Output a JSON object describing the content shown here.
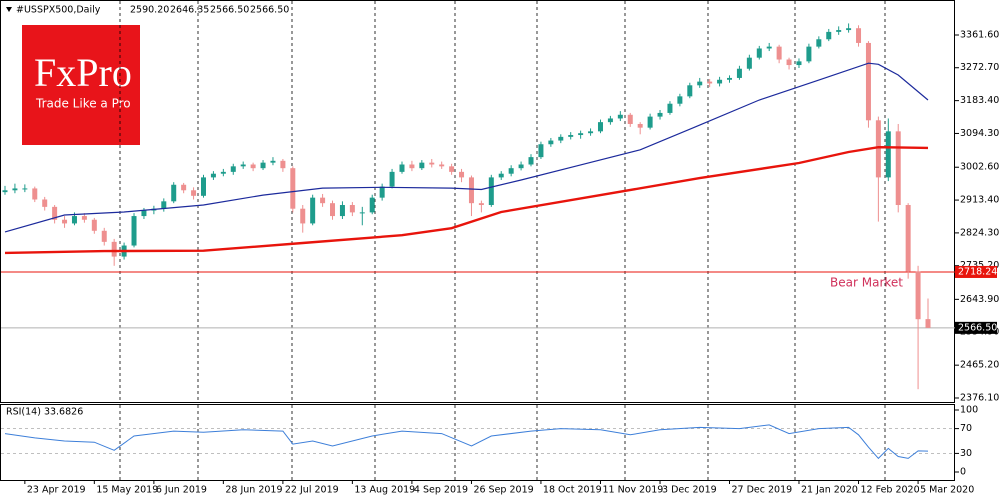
{
  "chart_data": {
    "type": "candlestick",
    "header": {
      "symbol": "#USSPX500,Daily",
      "ohlc": [
        {
          "value": 2590.2,
          "label": "2590.20"
        },
        {
          "value": 2646.35,
          "label": "2646.35"
        },
        {
          "value": 2566.5,
          "label": "2566.50"
        },
        {
          "value": 2566.5,
          "label": "2566.50"
        }
      ]
    },
    "logo": {
      "brand": "FxPro",
      "tagline": "Trade Like a Pro"
    },
    "categories": [
      null,
      null,
      "23 Apr 2019",
      null,
      null,
      null,
      null,
      null,
      null,
      "15 May 2019",
      null,
      null,
      null,
      null,
      null,
      "6 Jun 2019",
      null,
      null,
      null,
      null,
      null,
      null,
      "28 Jun 2019",
      null,
      null,
      null,
      null,
      null,
      "22 Jul 2019",
      null,
      null,
      null,
      null,
      null,
      null,
      "13 Aug 2019",
      null,
      null,
      null,
      null,
      null,
      "4 Sep 2019",
      null,
      null,
      null,
      null,
      null,
      "26 Sep 2019",
      null,
      null,
      null,
      null,
      null,
      null,
      "18 Oct 2019",
      null,
      null,
      null,
      null,
      null,
      "11 Nov 2019",
      null,
      null,
      null,
      null,
      null,
      "3 Dec 2019",
      null,
      null,
      null,
      null,
      null,
      null,
      "27 Dec 2019",
      null,
      null,
      null,
      null,
      null,
      null,
      "21 Jan 2020",
      null,
      null,
      null,
      null,
      null,
      "12 Feb 2020",
      null,
      null,
      null,
      null,
      null,
      "5 Mar 2020",
      null
    ],
    "open": [
      2935,
      2940,
      2945,
      2945,
      2915,
      2895,
      2860,
      2850,
      2870,
      2860,
      2830,
      2800,
      2760,
      2790,
      2870,
      2885,
      2890,
      2910,
      2955,
      2940,
      2925,
      2975,
      2985,
      2990,
      3005,
      3010,
      3000,
      3015,
      3020,
      3000,
      2890,
      2850,
      2920,
      2905,
      2870,
      2900,
      2880,
      2880,
      2920,
      2950,
      2990,
      3010,
      3000,
      3015,
      3010,
      3005,
      2990,
      2975,
      2905,
      2900,
      2975,
      2985,
      3000,
      3010,
      3030,
      3065,
      3075,
      3085,
      3090,
      3095,
      3100,
      3125,
      3135,
      3145,
      3120,
      3110,
      3140,
      3150,
      3175,
      3195,
      3225,
      3235,
      3230,
      3240,
      3245,
      3270,
      3300,
      3325,
      3330,
      3295,
      3280,
      3290,
      3330,
      3350,
      3370,
      3375,
      3380,
      3340,
      3130,
      2975,
      3100,
      2900,
      2720,
      2590.2
    ],
    "high": [
      2952,
      2958,
      2956,
      2950,
      2922,
      2900,
      2870,
      2880,
      2878,
      2865,
      2838,
      2808,
      2798,
      2878,
      2892,
      2898,
      2918,
      2962,
      2960,
      2948,
      2982,
      2992,
      2998,
      3012,
      3018,
      3015,
      3022,
      3030,
      3025,
      3005,
      2900,
      2928,
      2930,
      2912,
      2910,
      2908,
      2895,
      2928,
      2958,
      2998,
      3018,
      3020,
      3022,
      3025,
      3018,
      3012,
      2998,
      2980,
      2912,
      2982,
      2992,
      3008,
      3018,
      3038,
      3072,
      3082,
      3092,
      3098,
      3102,
      3108,
      3132,
      3142,
      3155,
      3150,
      3125,
      3148,
      3158,
      3182,
      3202,
      3232,
      3245,
      3242,
      3248,
      3252,
      3278,
      3308,
      3332,
      3340,
      3335,
      3300,
      3298,
      3338,
      3358,
      3378,
      3385,
      3393,
      3388,
      3345,
      3140,
      3135,
      3120,
      2905,
      2735,
      2646.35
    ],
    "low": [
      2928,
      2932,
      2935,
      2908,
      2885,
      2850,
      2838,
      2845,
      2852,
      2822,
      2790,
      2735,
      2752,
      2785,
      2862,
      2875,
      2882,
      2905,
      2932,
      2915,
      2920,
      2968,
      2978,
      2982,
      2998,
      2992,
      2995,
      3008,
      2990,
      2880,
      2825,
      2845,
      2895,
      2860,
      2862,
      2870,
      2845,
      2875,
      2912,
      2945,
      2985,
      2992,
      2995,
      3002,
      2998,
      2982,
      2962,
      2870,
      2880,
      2895,
      2968,
      2978,
      2994,
      3005,
      3025,
      3058,
      3068,
      3078,
      3080,
      3088,
      3095,
      3118,
      3128,
      3112,
      3092,
      3105,
      3132,
      3145,
      3168,
      3190,
      3218,
      3220,
      3222,
      3232,
      3240,
      3265,
      3295,
      3318,
      3285,
      3268,
      3272,
      3285,
      3325,
      3345,
      3362,
      3368,
      3330,
      3110,
      2855,
      2965,
      2880,
      2700,
      2400,
      2566.5
    ],
    "close": [
      2940,
      2945,
      2945,
      2915,
      2895,
      2860,
      2850,
      2870,
      2860,
      2830,
      2800,
      2760,
      2790,
      2870,
      2885,
      2890,
      2910,
      2955,
      2940,
      2925,
      2975,
      2985,
      2990,
      3005,
      3010,
      3000,
      3015,
      3020,
      3000,
      2890,
      2850,
      2920,
      2905,
      2870,
      2900,
      2880,
      2880,
      2920,
      2950,
      2990,
      3010,
      3000,
      3015,
      3010,
      3005,
      2990,
      2975,
      2905,
      2900,
      2975,
      2985,
      3000,
      3010,
      3030,
      3065,
      3075,
      3085,
      3090,
      3095,
      3100,
      3125,
      3135,
      3145,
      3120,
      3110,
      3140,
      3150,
      3175,
      3195,
      3225,
      3235,
      3230,
      3240,
      3245,
      3270,
      3300,
      3325,
      3330,
      3295,
      3280,
      3290,
      3330,
      3350,
      3370,
      3375,
      3380,
      3340,
      3130,
      2975,
      3100,
      2900,
      2720,
      2590,
      2566.5
    ],
    "up_color": "#1e9c8c",
    "down_color": "#ee8f8f",
    "ylim": [
      2365.2,
      3456.6
    ],
    "yticks": [
      {
        "value": 3361.6,
        "label": "3361.60"
      },
      {
        "value": 3272.7,
        "label": "3272.70"
      },
      {
        "value": 3183.4,
        "label": "3183.40"
      },
      {
        "value": 3094.3,
        "label": "3094.30"
      },
      {
        "value": 3002.6,
        "label": "3002.60"
      },
      {
        "value": 2913.4,
        "label": "2913.40"
      },
      {
        "value": 2824.3,
        "label": "2824.30"
      },
      {
        "value": 2735.2,
        "label": "2735.20"
      },
      {
        "value": 2643.9,
        "label": "2643.90"
      },
      {
        "value": 2554.9,
        "label": "2554.90"
      },
      {
        "value": 2465.2,
        "label": "2465.20"
      },
      {
        "value": 2376.1,
        "label": "2376.10"
      }
    ],
    "overlays": [
      {
        "color": "#1c2a9c",
        "x": [
          0,
          6,
          12,
          20,
          26,
          32,
          38,
          45,
          48,
          52,
          58,
          64,
          70,
          76,
          82,
          87,
          88,
          90,
          93
        ],
        "values": [
          2827,
          2873,
          2881,
          2900,
          2927,
          2946,
          2948,
          2946,
          2942,
          2968,
          3009,
          3050,
          3117,
          3185,
          3239,
          3285,
          3282,
          3253,
          3185
        ]
      },
      {
        "color": "#e8140c",
        "x": [
          0,
          10,
          20,
          30,
          40,
          45,
          50,
          60,
          70,
          80,
          85,
          88,
          93
        ],
        "values": [
          2770,
          2775,
          2776,
          2797,
          2818,
          2837,
          2881,
          2927,
          2973,
          3014,
          3044,
          3057,
          3055
        ]
      }
    ],
    "levels": [
      {
        "value": 2718.24,
        "color": "#e8140c",
        "annotation": "Bear Market"
      },
      {
        "value": 2566.5,
        "value_label": "2566.50",
        "color": "#b0b0b0"
      }
    ],
    "rsi": {
      "title": "RSI(14) 33.6826",
      "color": "#3d7fd9",
      "x": [
        0,
        3,
        6,
        9,
        11,
        13,
        17,
        20,
        24,
        28,
        29,
        31,
        33,
        37,
        40,
        44,
        47,
        49,
        53,
        56,
        60,
        63,
        66,
        70,
        74,
        77,
        79,
        82,
        85,
        86,
        87,
        88,
        89,
        90,
        91,
        92,
        93
      ],
      "values": [
        62,
        55,
        50,
        48,
        35,
        58,
        66,
        64,
        68,
        66,
        45,
        50,
        42,
        58,
        66,
        62,
        42,
        58,
        66,
        70,
        68,
        60,
        68,
        72,
        70,
        76,
        62,
        70,
        72,
        60,
        40,
        22,
        38,
        25,
        22,
        34,
        33.6826
      ],
      "ylim": [
        -12.9,
        109.7
      ],
      "yticks": [
        100,
        70,
        30,
        0
      ],
      "grid": [
        70,
        30
      ]
    }
  }
}
